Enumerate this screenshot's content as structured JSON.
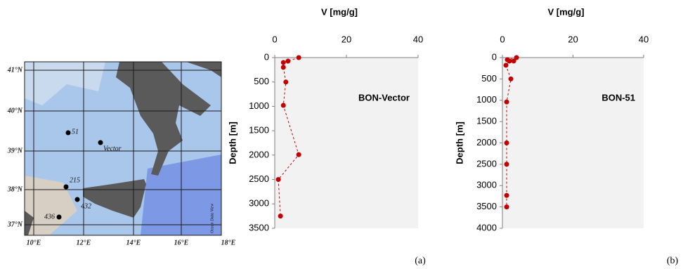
{
  "chart_data": [
    {
      "type": "line",
      "title": "V [mg/g]",
      "y_label": "Depth [m]",
      "annotation": "BON-Vector",
      "series": [
        {
          "color": "#c00000",
          "x": [
            6.7,
            3.7,
            2.4,
            2.4,
            3.1,
            2.4,
            6.7,
            1,
            1.6
          ],
          "values": [
            0,
            72,
            100,
            200,
            500,
            980,
            1990,
            2500,
            3250
          ]
        }
      ],
      "xlim": [
        0,
        40
      ],
      "xticks": [
        0,
        20,
        40
      ],
      "ylim": [
        0,
        3500
      ],
      "yticks": [
        0,
        500,
        1000,
        1500,
        2000,
        2500,
        3000,
        3500
      ],
      "y_inverted": true
    },
    {
      "type": "line",
      "title": "V [mg/g]",
      "y_label": "Depth [m]",
      "annotation": "BON-51",
      "series": [
        {
          "color": "#c00000",
          "x": [
            4,
            1.4,
            3.2,
            2,
            1,
            2.4,
            1.2,
            1.2,
            1.2,
            1.2,
            1.2
          ],
          "values": [
            0,
            50,
            80,
            80,
            180,
            500,
            1040,
            2000,
            2500,
            3230,
            3500
          ]
        }
      ],
      "xlim": [
        0,
        40
      ],
      "xticks": [
        0,
        20,
        40
      ],
      "ylim": [
        0,
        4000
      ],
      "yticks": [
        0,
        500,
        1000,
        1500,
        2000,
        2500,
        3000,
        3500,
        4000
      ],
      "y_inverted": true
    }
  ],
  "map": {
    "lat_labels": [
      "41°N",
      "40°N",
      "39°N",
      "38°N",
      "37°N"
    ],
    "lon_labels": [
      "10°E",
      "12°E",
      "14°E",
      "16°E",
      "18°E"
    ],
    "stations": [
      "51",
      "Vector",
      "215",
      "432",
      "436"
    ],
    "credit": "Ocean Data View"
  },
  "panel_labels": [
    "(a)",
    "(b)"
  ]
}
